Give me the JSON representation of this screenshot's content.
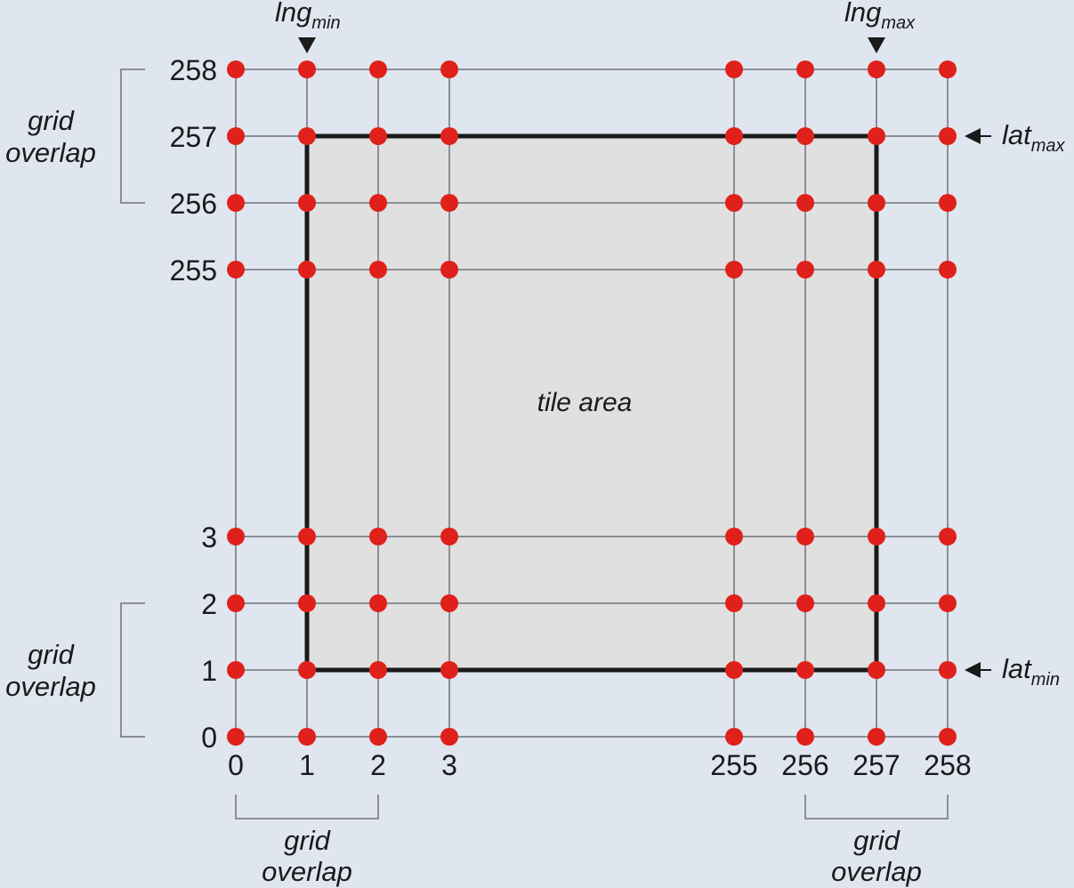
{
  "colors": {
    "background": "#dfe6ef",
    "tile_fill": "#e0e0e0",
    "tile_border": "#1a1a1a",
    "grid_line": "#8a8f96",
    "node": "#e0201a",
    "text": "#1a1a1a"
  },
  "x_ticks": [
    "0",
    "1",
    "2",
    "3",
    "255",
    "256",
    "257",
    "258"
  ],
  "y_ticks": [
    "0",
    "1",
    "2",
    "3",
    "255",
    "256",
    "257",
    "258"
  ],
  "tile_area_label": "tile area",
  "tile_extent": {
    "x_from": "1",
    "x_to": "257",
    "y_from": "1",
    "y_to": "257"
  },
  "markers": {
    "lng_min": {
      "main": "lng",
      "sub": "min",
      "at_x": "1"
    },
    "lng_max": {
      "main": "lng",
      "sub": "max",
      "at_x": "257"
    },
    "lat_max": {
      "main": "lat",
      "sub": "max",
      "at_y": "257"
    },
    "lat_min": {
      "main": "lat",
      "sub": "min",
      "at_y": "1"
    }
  },
  "grid_overlap": {
    "line1": "grid",
    "line2": "overlap",
    "brackets": [
      {
        "id": "left-top",
        "side": "left",
        "from": "256",
        "to": "258"
      },
      {
        "id": "left-bottom",
        "side": "left",
        "from": "0",
        "to": "2"
      },
      {
        "id": "bottom-left",
        "side": "bottom",
        "from": "0",
        "to": "2"
      },
      {
        "id": "bottom-right",
        "side": "bottom",
        "from": "256",
        "to": "258"
      }
    ]
  }
}
